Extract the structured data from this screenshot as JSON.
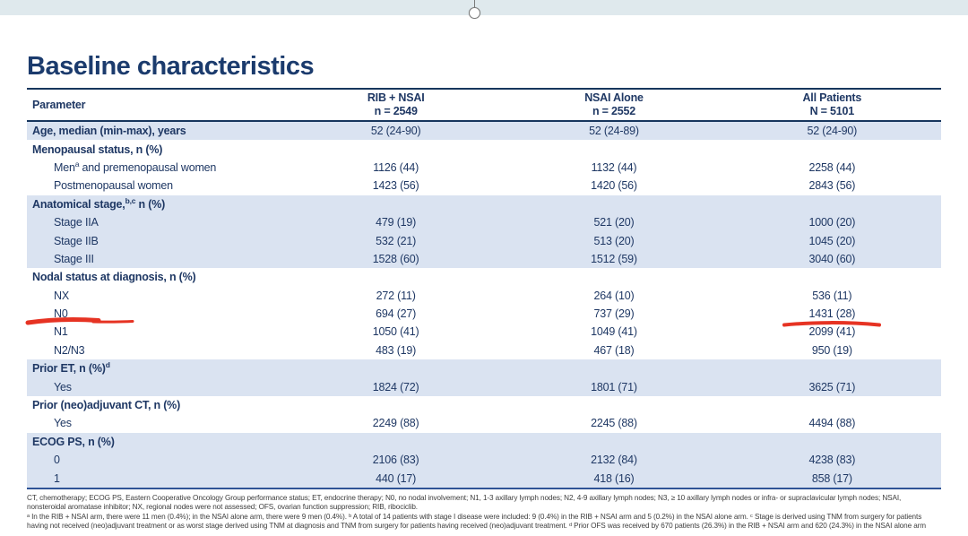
{
  "app": {
    "top_bar": {
      "name": "editor-top-strip"
    },
    "rotation_handle": {
      "name": "rotation-handle"
    }
  },
  "slide": {
    "title": "Baseline characteristics",
    "table": {
      "parameter_header": "Parameter",
      "columns": [
        {
          "label": "RIB + NSAI",
          "n": "n = 2549"
        },
        {
          "label": "NSAI Alone",
          "n": "n = 2552"
        },
        {
          "label": "All Patients",
          "n": "N = 5101"
        }
      ],
      "rows": [
        {
          "pre": "Age, median (min-max), years",
          "sup": "",
          "post": "",
          "bold": true,
          "indent": false,
          "shaded": true,
          "values": [
            "52 (24-90)",
            "52 (24-89)",
            "52 (24-90)"
          ]
        },
        {
          "pre": "Menopausal status, n (%)",
          "sup": "",
          "post": "",
          "bold": true,
          "indent": false,
          "shaded": false,
          "values": [
            "",
            "",
            ""
          ]
        },
        {
          "pre": "Men",
          "sup": "a",
          "post": " and premenopausal women",
          "bold": false,
          "indent": true,
          "shaded": false,
          "values": [
            "1126 (44)",
            "1132 (44)",
            "2258 (44)"
          ]
        },
        {
          "pre": "Postmenopausal women",
          "sup": "",
          "post": "",
          "bold": false,
          "indent": true,
          "shaded": false,
          "values": [
            "1423 (56)",
            "1420 (56)",
            "2843 (56)"
          ]
        },
        {
          "pre": "Anatomical stage,",
          "sup": "b,c",
          "post": " n (%)",
          "bold": true,
          "indent": false,
          "shaded": true,
          "values": [
            "",
            "",
            ""
          ]
        },
        {
          "pre": "Stage IIA",
          "sup": "",
          "post": "",
          "bold": false,
          "indent": true,
          "shaded": true,
          "values": [
            "479 (19)",
            "521 (20)",
            "1000 (20)"
          ]
        },
        {
          "pre": "Stage IIB",
          "sup": "",
          "post": "",
          "bold": false,
          "indent": true,
          "shaded": true,
          "values": [
            "532 (21)",
            "513 (20)",
            "1045 (20)"
          ]
        },
        {
          "pre": "Stage III",
          "sup": "",
          "post": "",
          "bold": false,
          "indent": true,
          "shaded": true,
          "values": [
            "1528 (60)",
            "1512 (59)",
            "3040 (60)"
          ]
        },
        {
          "pre": "Nodal status at diagnosis, n (%)",
          "sup": "",
          "post": "",
          "bold": true,
          "indent": false,
          "shaded": false,
          "values": [
            "",
            "",
            ""
          ]
        },
        {
          "pre": "NX",
          "sup": "",
          "post": "",
          "bold": false,
          "indent": true,
          "shaded": false,
          "values": [
            "272 (11)",
            "264 (10)",
            "536 (11)"
          ]
        },
        {
          "pre": "N0",
          "sup": "",
          "post": "",
          "bold": false,
          "indent": true,
          "shaded": false,
          "annotated": true,
          "values": [
            "694 (27)",
            "737 (29)",
            "1431 (28)"
          ]
        },
        {
          "pre": "N1",
          "sup": "",
          "post": "",
          "bold": false,
          "indent": true,
          "shaded": false,
          "values": [
            "1050 (41)",
            "1049 (41)",
            "2099 (41)"
          ]
        },
        {
          "pre": "N2/N3",
          "sup": "",
          "post": "",
          "bold": false,
          "indent": true,
          "shaded": false,
          "values": [
            "483 (19)",
            "467 (18)",
            "950 (19)"
          ]
        },
        {
          "pre": "Prior ET, n (%)",
          "sup": "d",
          "post": "",
          "bold": true,
          "indent": false,
          "shaded": true,
          "values": [
            "",
            "",
            ""
          ]
        },
        {
          "pre": "Yes",
          "sup": "",
          "post": "",
          "bold": false,
          "indent": true,
          "shaded": true,
          "values": [
            "1824 (72)",
            "1801 (71)",
            "3625 (71)"
          ]
        },
        {
          "pre": "Prior (neo)adjuvant CT, n (%)",
          "sup": "",
          "post": "",
          "bold": true,
          "indent": false,
          "shaded": false,
          "values": [
            "",
            "",
            ""
          ]
        },
        {
          "pre": "Yes",
          "sup": "",
          "post": "",
          "bold": false,
          "indent": true,
          "shaded": false,
          "values": [
            "2249 (88)",
            "2245 (88)",
            "4494 (88)"
          ]
        },
        {
          "pre": "ECOG PS, n (%)",
          "sup": "",
          "post": "",
          "bold": true,
          "indent": false,
          "shaded": true,
          "values": [
            "",
            "",
            ""
          ]
        },
        {
          "pre": "0",
          "sup": "",
          "post": "",
          "bold": false,
          "indent": true,
          "shaded": true,
          "values": [
            "2106 (83)",
            "2132 (84)",
            "4238 (83)"
          ]
        },
        {
          "pre": "1",
          "sup": "",
          "post": "",
          "bold": false,
          "indent": true,
          "shaded": true,
          "values": [
            "440 (17)",
            "418 (16)",
            "858 (17)"
          ]
        }
      ]
    },
    "annotations": {
      "color": "#e63323",
      "items": [
        "red-underline-n0-label",
        "red-underline-all-patients-1431"
      ]
    },
    "footnotes": {
      "lines": [
        "CT, chemotherapy; ECOG PS, Eastern Cooperative Oncology Group performance status; ET, endocrine therapy; N0, no nodal involvement; N1, 1-3 axillary lymph nodes; N2, 4-9 axillary lymph nodes; N3, ≥ 10 axillary lymph nodes or infra- or supraclavicular lymph nodes; NSAI,",
        "nonsteroidal aromatase inhibitor; NX, regional nodes were not assessed; OFS, ovarian function suppression; RIB, ribociclib.",
        "ᵃ In the RIB + NSAI arm, there were 11 men (0.4%); in the NSAI alone arm, there were 9 men (0.4%). ᵇ A total of 14 patients with stage I disease were included: 9 (0.4%) in the RIB + NSAI arm and 5 (0.2%) in the NSAI alone arm. ᶜ Stage is derived using TNM from surgery for patients",
        "having not received (neo)adjuvant treatment or as worst stage derived using TNM at diagnosis and TNM from surgery for patients having received (neo)adjuvant treatment. ᵈ Prior OFS was received by 670 patients (26.3%) in the RIB + NSAI arm and 620 (24.3%) in the NSAI alone arm"
      ]
    },
    "colors": {
      "title": "#1b3b6d",
      "text": "#1f3864",
      "row_shade": "#dae3f1",
      "border_dark": "#17365d",
      "border_bottom": "#2f5496",
      "top_strip": "#dfe9ed",
      "annotation_red": "#e63323"
    }
  }
}
